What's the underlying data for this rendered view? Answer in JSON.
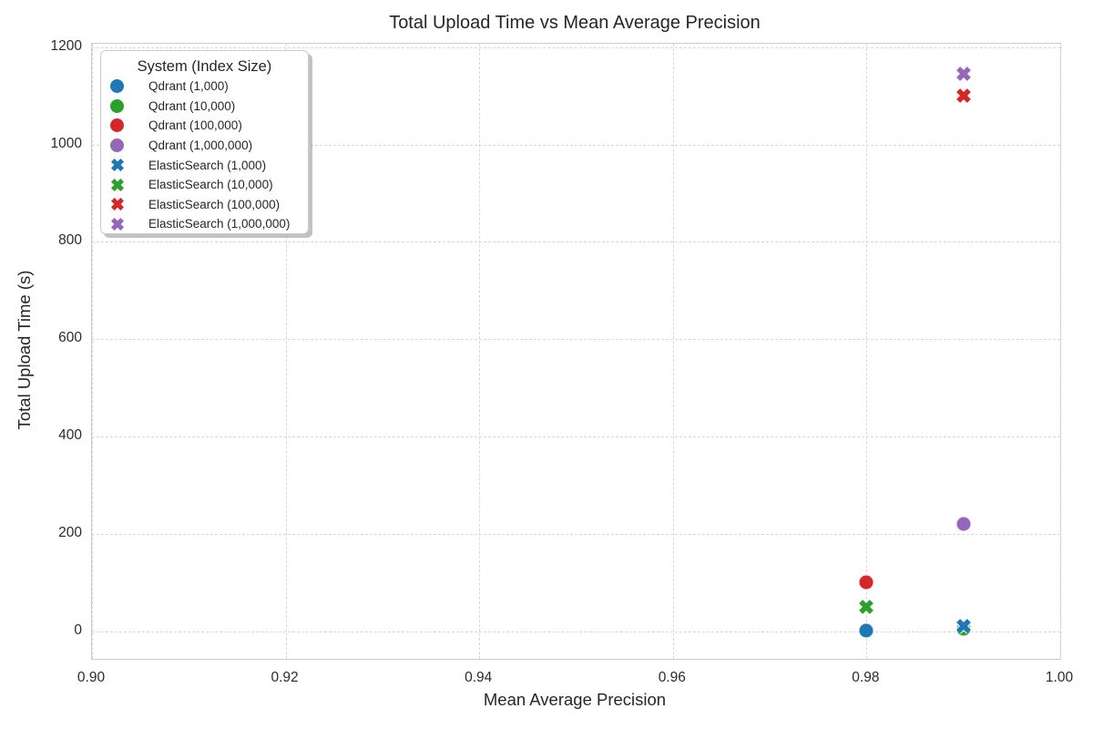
{
  "chart_data": {
    "type": "scatter",
    "title": "Total Upload Time vs Mean Average Precision",
    "xlabel": "Mean Average Precision",
    "ylabel": "Total Upload Time (s)",
    "xlim": [
      0.9,
      1.0
    ],
    "ylim": [
      -57,
      1207
    ],
    "grid": "dashed, both axes",
    "x_ticks": {
      "values": [
        0.9,
        0.92,
        0.94,
        0.96,
        0.98,
        1.0
      ],
      "labels": [
        "0.90",
        "0.92",
        "0.94",
        "0.96",
        "0.98",
        "1.00"
      ]
    },
    "y_ticks": {
      "values": [
        0,
        200,
        400,
        600,
        800,
        1000,
        1200
      ],
      "labels": [
        "0",
        "200",
        "400",
        "600",
        "800",
        "1000",
        "1200"
      ]
    },
    "legend": {
      "title": "System (Index Size)",
      "position": "upper left"
    },
    "colors": {
      "blue": "#1f77b4",
      "green": "#2ca02c",
      "red": "#d62728",
      "purple": "#9467bd"
    },
    "series": [
      {
        "name": "Qdrant (1,000)",
        "marker": "circle",
        "color": "#1f77b4",
        "points": [
          {
            "x": 0.98,
            "y": 1
          }
        ]
      },
      {
        "name": "Qdrant (10,000)",
        "marker": "circle",
        "color": "#2ca02c",
        "points": [
          {
            "x": 0.99,
            "y": 5
          }
        ]
      },
      {
        "name": "Qdrant (100,000)",
        "marker": "circle",
        "color": "#d62728",
        "points": [
          {
            "x": 0.98,
            "y": 100
          }
        ]
      },
      {
        "name": "Qdrant (1,000,000)",
        "marker": "circle",
        "color": "#9467bd",
        "points": [
          {
            "x": 0.99,
            "y": 220
          }
        ]
      },
      {
        "name": "ElasticSearch (1,000)",
        "marker": "x",
        "color": "#1f77b4",
        "points": [
          {
            "x": 0.99,
            "y": 10
          }
        ]
      },
      {
        "name": "ElasticSearch (10,000)",
        "marker": "x",
        "color": "#2ca02c",
        "points": [
          {
            "x": 0.98,
            "y": 50
          }
        ]
      },
      {
        "name": "ElasticSearch (100,000)",
        "marker": "x",
        "color": "#d62728",
        "points": [
          {
            "x": 0.99,
            "y": 1100
          }
        ]
      },
      {
        "name": "ElasticSearch (1,000,000)",
        "marker": "x",
        "color": "#9467bd",
        "points": [
          {
            "x": 0.99,
            "y": 1145
          }
        ]
      }
    ]
  }
}
